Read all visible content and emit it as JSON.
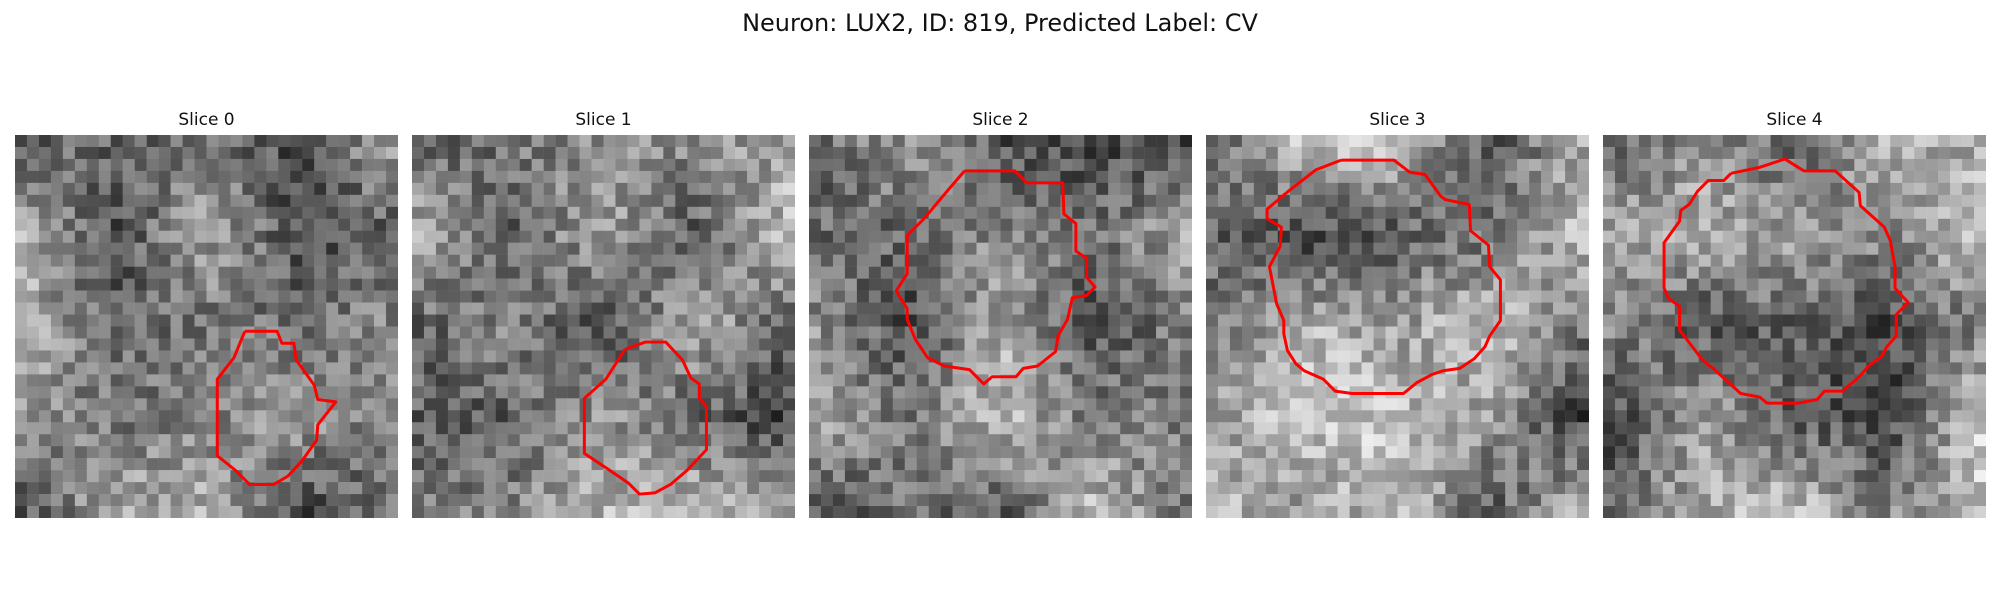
{
  "figure": {
    "title": "Neuron: LUX2, ID: 819, Predicted Label: CV"
  },
  "colors": {
    "contour": "#ff0000",
    "background": "#ffffff"
  },
  "panels": [
    {
      "title": "Slice 0",
      "seed": 11,
      "dark_blob": false
    },
    {
      "title": "Slice 1",
      "seed": 23,
      "dark_blob": true
    },
    {
      "title": "Slice 2",
      "seed": 37,
      "dark_blob": false
    },
    {
      "title": "Slice 3",
      "seed": 41,
      "dark_blob": true
    },
    {
      "title": "Slice 4",
      "seed": 59,
      "dark_blob": true
    }
  ]
}
